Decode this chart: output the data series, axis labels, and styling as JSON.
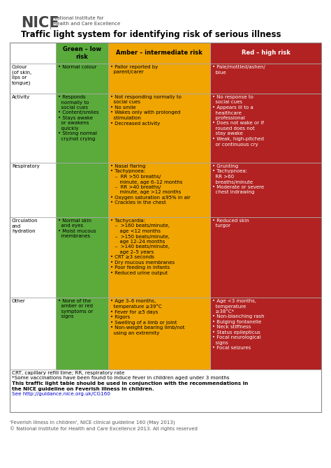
{
  "title": "Traffic light system for identifying risk of serious illness",
  "nice_text": "NICE",
  "nice_subtitle": "National Institute for\nHealth and Care Excellence",
  "footer1": "'Feverish illness in children', NICE clinical guideline 160 (May 2013)",
  "footer2": "© National Institute for Health and Care Excellence 2013. All rights reserved",
  "footnote1": "CRT, capillary refill time; RR, respiratory rate",
  "footnote2": "*Some vaccinations have been found to induce fever in children aged under 3 months",
  "footnote3_bold": "This traffic light table should be used in conjunction with the recommendations in",
  "footnote4_bold": "the NICE guideline on Feverish illness in children.",
  "footnote5_link": "See http://guidance.nice.org.uk/CG160",
  "col_headers": [
    "",
    "Green – low\nrisk",
    "Amber – intermediate risk",
    "Red – high risk"
  ],
  "header_colors": [
    "#ffffff",
    "#5aaa3c",
    "#f0a500",
    "#b22222"
  ],
  "header_text_colors": [
    "#000000",
    "#000000",
    "#000000",
    "#ffffff"
  ],
  "row_colors": [
    "#ffffff",
    "#5aaa3c",
    "#f0a500",
    "#b22222"
  ],
  "row_text_colors": [
    "#000000",
    "#000000",
    "#000000",
    "#ffffff"
  ],
  "rows": [
    {
      "label": "Colour\n(of skin,\nlips or\ntongue)",
      "green": "• Normal colour",
      "amber": "• Pallor reported by\n  parent/carer",
      "red": "• Pale/mottled/ashen/\n  blue"
    },
    {
      "label": "Activity",
      "green": "• Responds\n  normally to\n  social cues\n• Content/smiles\n• Stays awake\n  or awakens\n  quickly\n• Strong normal\n  cry/not crying",
      "amber": "• Not responding normally to\n  social cues\n• No smile\n• Wakes only with prolonged\n  stimulation\n• Decreased activity",
      "red": "• No response to\n  social cues\n• Appears ill to a\n  healthcare\n  professional\n• Does not wake or if\n  roused does not\n  stay awake\n• Weak, high-pitched\n  or continuous cry"
    },
    {
      "label": "Respiratory",
      "green": "",
      "amber": "• Nasal flaring\n• Tachypnoea:\n   –  RR >50 breaths/\n      minute, age 6–12 months\n   –  RR >40 breaths/\n      minute, age >12 months\n• Oxygen saturation ≤95% in air\n• Crackles in the chest",
      "red": "• Grunting\n• Tachypnoea:\n  RR >60\n  breaths/minute\n• Moderate or severe\n  chest indrawing"
    },
    {
      "label": "Circulation\nand\nhydration",
      "green": "• Normal skin\n  and eyes\n• Moist mucous\n  membranes",
      "amber": "• Tachycardia:\n   –  >160 beats/minute,\n      age <12 months\n   –  >150 beats/minute,\n      age 12–24 months\n   –  >140 beats/minute,\n      age 2–5 years\n• CRT ≥3 seconds\n• Dry mucous membranes\n• Poor feeding in infants\n• Reduced urine output",
      "red": "• Reduced skin\n  turgor"
    },
    {
      "label": "Other",
      "green": "• None of the\n  amber or red\n  symptoms or\n  signs",
      "amber": "• Age 3–6 months,\n  temperature ≥39°C\n• Fever for ≥5 days\n• Rigors\n• Swelling of a limb or joint\n• Non-weight bearing limb/not\n  using an extremity",
      "red": "• Age <3 months,\n  temperature\n  ≥38°C*\n• Non-blanching rash\n• Bulging fontanelle\n• Neck stiffness\n• Status epilepticus\n• Focal neurological\n  signs\n• Focal seizures"
    }
  ]
}
